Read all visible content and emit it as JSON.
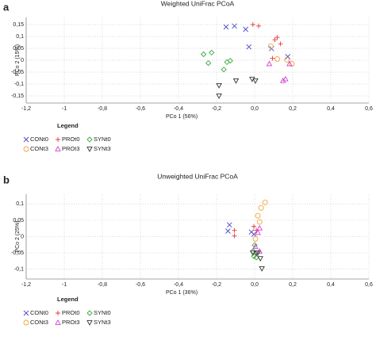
{
  "chart_data": [
    {
      "type": "scatter",
      "panel": "a",
      "title": "Weighted UniFrac PCoA",
      "x_label": "PCo 1 (56%)",
      "y_label": "PCo 2 (15%)",
      "legend_title": "Legend",
      "grid": true,
      "xlim": [
        -1.2,
        0.6
      ],
      "xticks": [
        {
          "value": -1.2,
          "label": "-1,2"
        },
        -1,
        {
          "value": -0.8,
          "label": "-0,8"
        },
        {
          "value": -0.6,
          "label": "-0,6"
        },
        {
          "value": -0.4,
          "label": "-0,4"
        },
        {
          "value": -0.2,
          "label": "-0,2"
        },
        {
          "value": 0,
          "label": "0,0"
        },
        {
          "value": 0.2,
          "label": "0,2"
        },
        {
          "value": 0.4,
          "label": "0,4"
        },
        {
          "value": 0.6,
          "label": "0,6"
        }
      ],
      "ylim": [
        -0.18,
        0.18
      ],
      "yticks": [
        {
          "value": 0.15,
          "label": "0,15"
        },
        {
          "value": 0.1,
          "label": "0,1"
        },
        {
          "value": 0.05,
          "label": "0,05"
        },
        0,
        {
          "value": -0.05,
          "label": "-0,05"
        },
        {
          "value": -0.1,
          "label": "-0,1"
        },
        {
          "value": -0.15,
          "label": "-0,15"
        }
      ],
      "series": [
        {
          "name": "CONt0",
          "color": "#4a4ac8",
          "marker": "x",
          "x": [
            -0.15,
            -0.106,
            -0.047,
            -0.03,
            0.089,
            0.174
          ],
          "y": [
            0.14,
            0.144,
            0.13,
            0.056,
            0.049,
            0.015
          ]
        },
        {
          "name": "PROt0",
          "color": "#e8383c",
          "marker": "plus",
          "x": [
            -0.009,
            0.021,
            0.106,
            0.119,
            0.136,
            0.094
          ],
          "y": [
            0.15,
            0.144,
            0.086,
            0.096,
            0.069,
            0.008
          ]
        },
        {
          "name": "SYNt0",
          "color": "#3aa83a",
          "marker": "diamond",
          "x": [
            -0.268,
            -0.226,
            -0.243,
            -0.145,
            -0.128,
            -0.162
          ],
          "y": [
            0.025,
            0.032,
            -0.012,
            -0.008,
            -0.002,
            -0.039
          ]
        },
        {
          "name": "CONt3",
          "color": "#f5a340",
          "marker": "circle",
          "x": [
            0.085,
            0.119,
            0.17,
            0.196
          ],
          "y": [
            0.059,
            0.005,
            0.002,
            -0.015
          ]
        },
        {
          "name": "PROt3",
          "color": "#d23ed2",
          "marker": "triangle",
          "x": [
            0.162,
            0.149,
            0.183,
            0.077
          ],
          "y": [
            -0.079,
            -0.086,
            -0.015,
            -0.015
          ]
        },
        {
          "name": "SYNt3",
          "color": "#333333",
          "marker": "triangle-down",
          "x": [
            -0.187,
            -0.098,
            -0.013,
            0.004,
            -0.187
          ],
          "y": [
            -0.106,
            -0.086,
            -0.079,
            -0.086,
            -0.15
          ]
        }
      ]
    },
    {
      "type": "scatter",
      "panel": "b",
      "title": "Unweighted UniFrac PCoA",
      "x_label": "PCo 1 (36%)",
      "y_label": "PCo 2 (25%)",
      "legend_title": "Legend",
      "grid": true,
      "xlim": [
        -1.2,
        0.6
      ],
      "xticks": [
        {
          "value": -1.2,
          "label": "-1,2"
        },
        -1,
        {
          "value": -0.8,
          "label": "-0,8"
        },
        {
          "value": -0.6,
          "label": "-0,6"
        },
        {
          "value": -0.4,
          "label": "-0,4"
        },
        {
          "value": -0.2,
          "label": "-0,2"
        },
        {
          "value": 0,
          "label": "0,0"
        },
        {
          "value": 0.2,
          "label": "0,2"
        },
        {
          "value": 0.4,
          "label": "0,4"
        },
        {
          "value": 0.6,
          "label": "0,6"
        }
      ],
      "ylim": [
        -0.13,
        0.13
      ],
      "yticks": [
        {
          "value": 0.1,
          "label": "0,1"
        },
        {
          "value": 0.05,
          "label": "0,05"
        },
        0,
        {
          "value": -0.05,
          "label": "-0,05"
        },
        {
          "value": -0.1,
          "label": "-0,1"
        }
      ],
      "series": [
        {
          "name": "CONt0",
          "color": "#4a4ac8",
          "marker": "x",
          "x": [
            -0.132,
            -0.14,
            -0.017,
            -0.004
          ],
          "y": [
            0.036,
            0.017,
            0.014,
            0.007
          ]
        },
        {
          "name": "PROt0",
          "color": "#e8383c",
          "marker": "plus",
          "x": [
            -0.106,
            -0.106,
            -0.004,
            0.009
          ],
          "y": [
            0.019,
            0.002,
            0.031,
            0.019
          ]
        },
        {
          "name": "SYNt0",
          "color": "#3aa83a",
          "marker": "diamond",
          "x": [
            -0.009,
            -0.004,
            0.009,
            0
          ],
          "y": [
            -0.045,
            -0.06,
            -0.064,
            -0.026
          ]
        },
        {
          "name": "CONt3",
          "color": "#f5a340",
          "marker": "circle",
          "x": [
            0.055,
            0.034,
            0.017,
            0.026,
            0.004
          ],
          "y": [
            0.105,
            0.088,
            0.064,
            0.045,
            -0.007
          ]
        },
        {
          "name": "PROt3",
          "color": "#d23ed2",
          "marker": "triangle",
          "x": [
            0.026,
            0.017,
            0.004,
            0.026
          ],
          "y": [
            0.026,
            0.012,
            -0.031,
            -0.045
          ]
        },
        {
          "name": "SYNt3",
          "color": "#333333",
          "marker": "triangle-down",
          "x": [
            0.009,
            0.017,
            0.03,
            0.038,
            -0.009
          ],
          "y": [
            -0.05,
            -0.05,
            -0.067,
            -0.098,
            -0.05
          ]
        }
      ]
    }
  ]
}
